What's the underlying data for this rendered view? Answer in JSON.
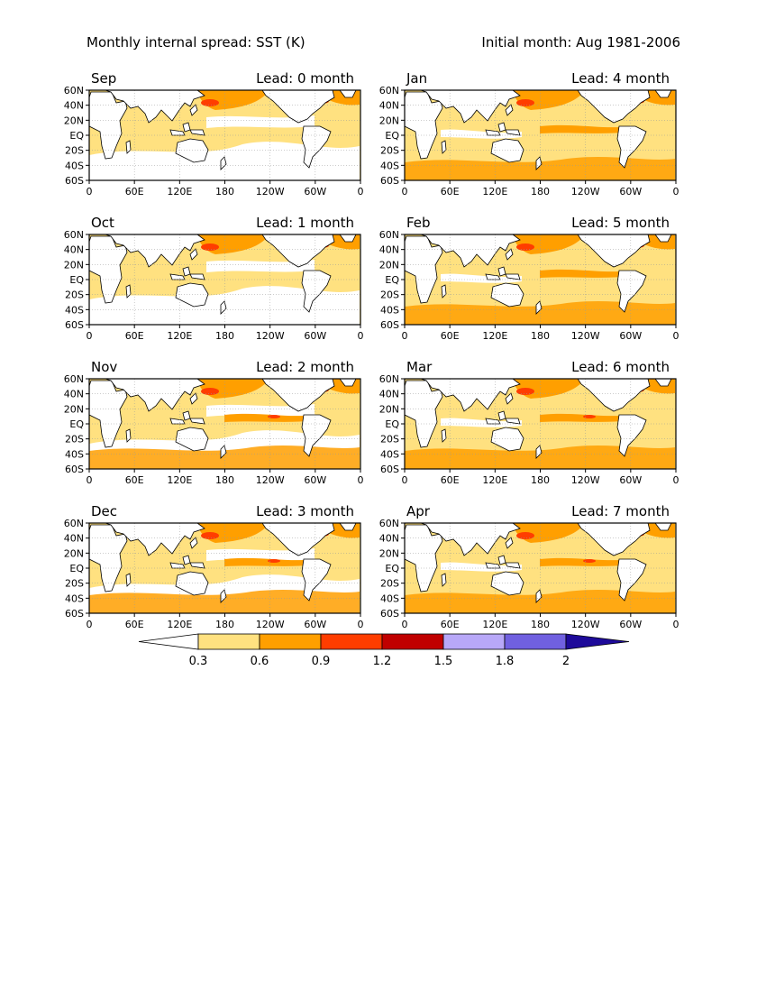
{
  "header": {
    "left": "Monthly internal spread: SST (K)",
    "right": "Initial month: Aug 1981-2006"
  },
  "axis": {
    "lat_labels": [
      "60N",
      "40N",
      "20N",
      "EQ",
      "20S",
      "40S",
      "60S"
    ],
    "lon_labels": [
      "0",
      "60E",
      "120E",
      "180",
      "120W",
      "60W",
      "0"
    ]
  },
  "panels": [
    {
      "month": "Sep",
      "lead": "Lead: 0 month"
    },
    {
      "month": "Jan",
      "lead": "Lead: 4 month"
    },
    {
      "month": "Oct",
      "lead": "Lead: 1 month"
    },
    {
      "month": "Feb",
      "lead": "Lead: 5 month"
    },
    {
      "month": "Nov",
      "lead": "Lead: 2 month"
    },
    {
      "month": "Mar",
      "lead": "Lead: 6 month"
    },
    {
      "month": "Dec",
      "lead": "Lead: 3 month"
    },
    {
      "month": "Apr",
      "lead": "Lead: 7 month"
    }
  ],
  "colorbar": {
    "labels": [
      "0.3",
      "0.6",
      "0.9",
      "1.2",
      "1.5",
      "1.8",
      "2"
    ],
    "colors": [
      "#ffffff",
      "#ffe180",
      "#ff9f00",
      "#ff3d00",
      "#c00000",
      "#b8a8f8",
      "#7060e0",
      "#1e0a9a"
    ]
  },
  "colors": {
    "land": "#ffffff",
    "low": "#ffe180",
    "mid": "#ff9f00",
    "high": "#ff3d00",
    "coast": "#000000"
  }
}
